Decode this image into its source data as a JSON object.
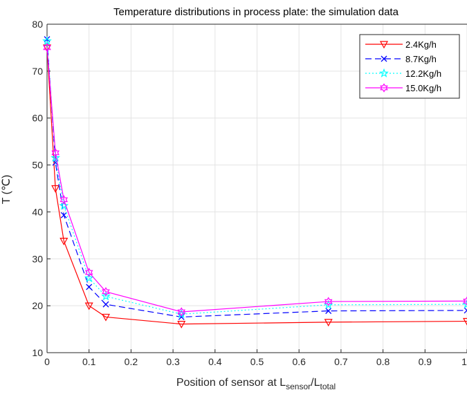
{
  "chart_data": {
    "type": "line",
    "title": "Temperature distributions in process plate: the simulation data",
    "xlabel": {
      "prefix": "Position of sensor at L",
      "sub1": "sensor",
      "mid": "/L",
      "sub2": "total"
    },
    "ylabel": "T (℃)",
    "xlim": [
      0,
      1
    ],
    "ylim": [
      10,
      80
    ],
    "xticks": [
      0,
      0.1,
      0.2,
      0.3,
      0.4,
      0.5,
      0.6,
      0.7,
      0.8,
      0.9,
      1
    ],
    "xtick_labels": [
      "0",
      "0.1",
      "0.2",
      "0.3",
      "0.4",
      "0.5",
      "0.6",
      "0.7",
      "0.8",
      "0.9",
      "1"
    ],
    "yticks": [
      10,
      20,
      30,
      40,
      50,
      60,
      70,
      80
    ],
    "ytick_labels": [
      "10",
      "20",
      "30",
      "40",
      "50",
      "60",
      "70",
      "80"
    ],
    "grid": true,
    "legend_position": "top-right",
    "x": [
      0,
      0.02,
      0.04,
      0.1,
      0.14,
      0.32,
      0.67,
      1.0
    ],
    "series": [
      {
        "name": "2.4Kg/h",
        "values": [
          75,
          45,
          33.8,
          20,
          17.6,
          16.1,
          16.5,
          16.7
        ],
        "color": "#ff0000",
        "dash": "solid",
        "marker": "triangle-down"
      },
      {
        "name": "8.7Kg/h",
        "values": [
          76.8,
          50.5,
          39.3,
          24,
          20.3,
          17.6,
          18.9,
          19
        ],
        "color": "#0000ff",
        "dash": "dashed",
        "marker": "x"
      },
      {
        "name": "12.2Kg/h",
        "values": [
          76.4,
          51.5,
          41.3,
          25.9,
          22,
          18.2,
          20.2,
          20.3
        ],
        "color": "#00ffff",
        "dash": "dotted",
        "marker": "star"
      },
      {
        "name": "15.0Kg/h",
        "values": [
          75,
          52.6,
          42.6,
          27.1,
          23,
          18.7,
          20.9,
          21
        ],
        "color": "#ff00ff",
        "dash": "solid",
        "marker": "hexagram"
      }
    ]
  }
}
